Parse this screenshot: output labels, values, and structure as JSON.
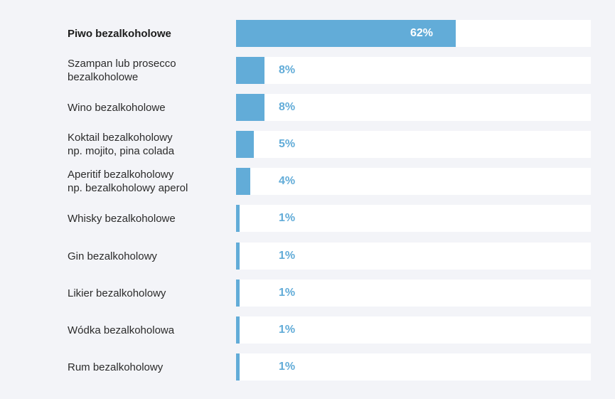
{
  "chart_data": {
    "type": "bar",
    "orientation": "horizontal",
    "title": "",
    "xlabel": "",
    "ylabel": "",
    "xlim": [
      0,
      100
    ],
    "grid": false,
    "categories": [
      "Piwo bezalkoholowe",
      "Szampan lub prosecco\nbezalkoholowe",
      "Wino bezalkoholowe",
      "Koktail bezalkoholowy\nnp. mojito, pina colada",
      "Aperitif bezalkoholowy\nnp. bezalkoholowy aperol",
      "Whisky bezalkoholowe",
      "Gin bezalkoholowy",
      "Likier bezalkoholowy",
      "Wódka bezalkoholowa",
      "Rum bezalkoholowy"
    ],
    "values": [
      62,
      8,
      8,
      5,
      4,
      1,
      1,
      1,
      1,
      1
    ],
    "value_labels": [
      "62%",
      "8%",
      "8%",
      "5%",
      "4%",
      "1%",
      "1%",
      "1%",
      "1%",
      "1%"
    ],
    "highlighted_category": "Piwo bezalkoholowe",
    "colors": {
      "bar": "#62acd8",
      "track": "#ffffff",
      "background": "#f3f4f8",
      "label": "#2b2b2b",
      "value_outside": "#62acd8",
      "value_inside": "#ffffff"
    }
  }
}
